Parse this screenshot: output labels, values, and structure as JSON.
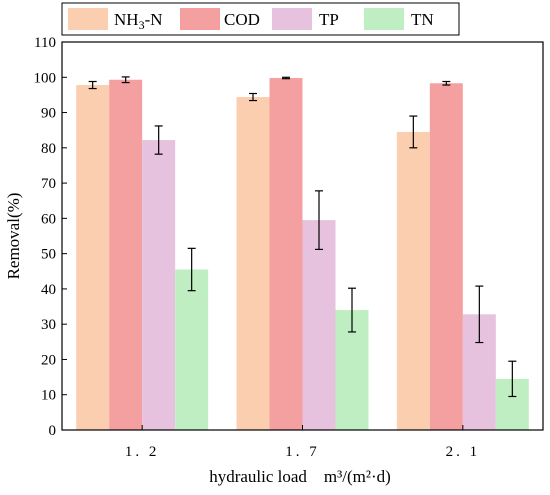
{
  "chart_data": {
    "type": "bar",
    "xlabel": "hydraulic load　m³/(m²·d)",
    "ylabel": "Removal(%)",
    "ylim": [
      0,
      110
    ],
    "yticks": [
      0,
      10,
      20,
      30,
      40,
      50,
      60,
      70,
      80,
      90,
      100,
      110
    ],
    "categories": [
      "1. 2",
      "1. 7",
      "2. 1"
    ],
    "legend_position": "top",
    "series": [
      {
        "name_base": "NH",
        "name_sub": "3",
        "name_tail": "-N",
        "color": "#fcceb0",
        "values": [
          97.8,
          94.4,
          84.5
        ],
        "errors": [
          1.0,
          1.0,
          4.5
        ]
      },
      {
        "name": "COD",
        "color": "#f4a0a0",
        "values": [
          99.3,
          99.8,
          98.3
        ],
        "errors": [
          0.8,
          0.2,
          0.5
        ]
      },
      {
        "name": "TP",
        "color": "#e6c2df",
        "values": [
          82.2,
          59.5,
          32.8
        ],
        "errors": [
          4.0,
          8.3,
          8.0
        ]
      },
      {
        "name": "TN",
        "color": "#bfeec3",
        "values": [
          45.5,
          34.0,
          14.5
        ],
        "errors": [
          6.0,
          6.2,
          5.0
        ]
      }
    ]
  }
}
